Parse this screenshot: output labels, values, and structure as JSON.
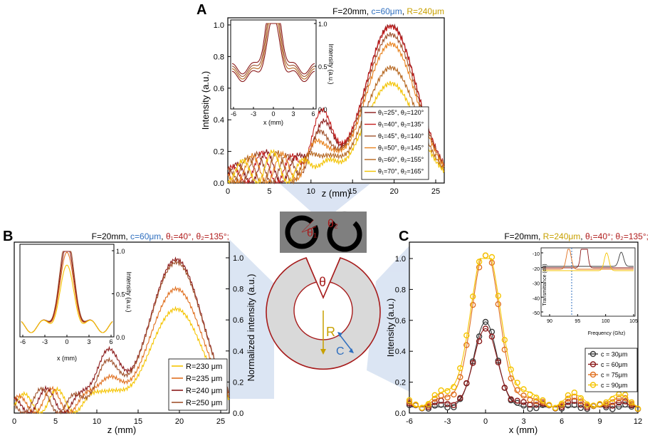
{
  "colors": {
    "c30": "#3a3a3a",
    "c60": "#8b1a1a",
    "c75": "#e07020",
    "c90": "#f5c400",
    "blue": "#2f6fbf",
    "gold": "#c8a000",
    "darkred": "#b01c1c",
    "diagram_red": "#a61b1b",
    "projection": "#cfdcef"
  },
  "panelA": {
    "label": "A",
    "title": {
      "part1": "F=20mm, ",
      "part2": "c=60μm",
      "part3": ", ",
      "part4": "R=240μm"
    },
    "xlabel": "z (mm)",
    "ylabel": "Intensity (a.u.)",
    "xticks": [
      "0",
      "5",
      "10",
      "15",
      "20",
      "25"
    ],
    "yticks": [
      "0.0",
      "0.2",
      "0.4",
      "0.6",
      "0.8",
      "1.0"
    ],
    "inset": {
      "xlabel": "x (mm)",
      "ylabel": "Intensity (a.u.)",
      "xticks": [
        "-6",
        "-3",
        "0",
        "3",
        "6"
      ],
      "yticks": [
        "0.0",
        "0.5",
        "1.0"
      ]
    },
    "legend": [
      "θ₁=25°, θ₂=120°",
      "θ₁=40°, θ₂=135°",
      "θ₁=45°, θ₂=140°",
      "θ₁=50°, θ₂=145°",
      "θ₁=60°, θ₂=155°",
      "θ₁=70°, θ₂=165°"
    ],
    "legend_colors": [
      "#8b1a1a",
      "#c41e1e",
      "#a0522d",
      "#e8821e",
      "#b5651d",
      "#f2c200"
    ]
  },
  "panelB": {
    "label": "B",
    "title": {
      "part1": "F=20mm, ",
      "part2": "c=60μm",
      "part3": ", ",
      "part4": "θ₁=40°, θ₂=135°;"
    },
    "xlabel": "z (mm)",
    "ylabel": "Normalized intensity (a.u.)",
    "xticks": [
      "0",
      "5",
      "10",
      "15",
      "20",
      "25"
    ],
    "yticks": [
      "0.0",
      "0.2",
      "0.4",
      "0.6",
      "0.8",
      "1.0"
    ],
    "inset": {
      "xlabel": "x (mm)",
      "ylabel": "Intensity (a.u.)",
      "xticks": [
        "-6",
        "-3",
        "0",
        "3",
        "6"
      ],
      "yticks": [
        "0.0",
        "0.5",
        "1.0"
      ]
    },
    "legend": [
      "R=230 μm",
      "R=235 μm",
      "R=240 μm",
      "R=250 μm"
    ],
    "legend_colors": [
      "#f5c400",
      "#e07020",
      "#8b1a1a",
      "#a0522d"
    ]
  },
  "panelC": {
    "label": "C",
    "title": {
      "part1": "F=20mm, ",
      "part2": "R=240μm",
      "part3": ", ",
      "part4": "θ₁=40°; θ₂=135°;"
    },
    "xlabel": "x (mm)",
    "ylabel": "Intensity (a.u.)",
    "xticks": [
      "-6",
      "-3",
      "0",
      "3",
      "6",
      "9",
      "12"
    ],
    "yticks": [
      "0.0",
      "0.2",
      "0.4",
      "0.6",
      "0.8",
      "1.0"
    ],
    "inset": {
      "xlabel": "Frequency (Ghz)",
      "ylabel": "Transmittance (dB)",
      "xticks": [
        "90",
        "95",
        "100",
        "105"
      ],
      "yticks": [
        "-10",
        "-20",
        "-30",
        "-40",
        "-50"
      ]
    },
    "legend": [
      "c = 30μm",
      "c = 60μm",
      "c = 75μm",
      "c = 90μm"
    ],
    "legend_colors": [
      "#3a3a3a",
      "#8b1a1a",
      "#e07020",
      "#f5c400"
    ]
  },
  "diagram": {
    "theta": "θ",
    "theta1": "θ₁",
    "theta2": "θ₂",
    "R": "R",
    "c": "C"
  }
}
